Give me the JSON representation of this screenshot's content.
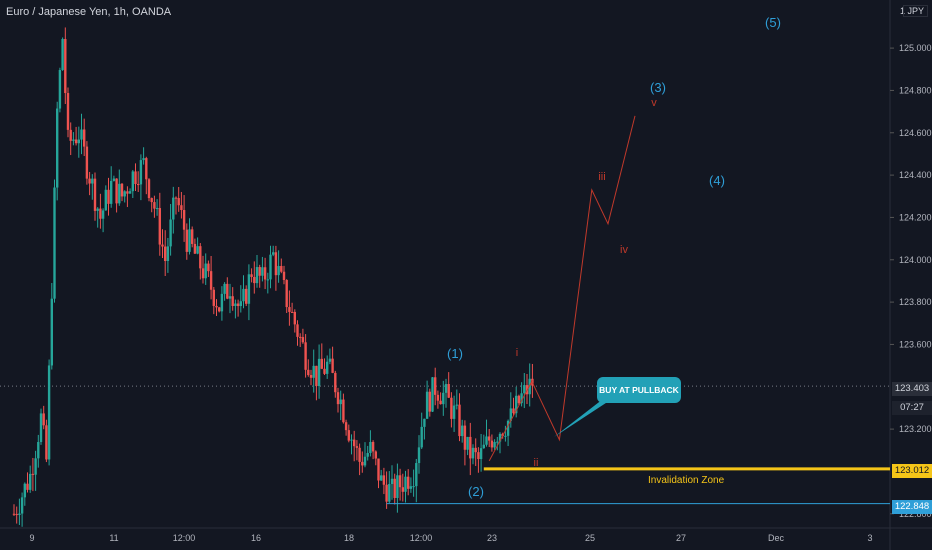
{
  "header": {
    "title": "Euro / Japanese Yen, 1h, OANDA",
    "currency": "JPY"
  },
  "colors": {
    "bg": "#131722",
    "up": "#26a69a",
    "down": "#ef5350",
    "wave": "#2f9fd8",
    "projection": "#c0392b",
    "invalidation": "#f5c518",
    "callout": "#22a1b7",
    "grid": "#1e2230"
  },
  "axis": {
    "y_ticks": [
      "125.000",
      "124.800",
      "124.600",
      "124.400",
      "124.200",
      "124.000",
      "123.800",
      "123.600",
      "123.200",
      "122.800"
    ],
    "x_ticks": [
      "9",
      "11",
      "12:00",
      "16",
      "18",
      "12:00",
      "23",
      "25",
      "27",
      "Dec",
      "3"
    ]
  },
  "price_tags": {
    "current": "123.403",
    "countdown": "07:27",
    "invalidation": "123.012",
    "low": "122.848",
    "top": "1"
  },
  "annotations": {
    "waves_major": [
      "(1)",
      "(2)",
      "(3)",
      "(4)",
      "(5)"
    ],
    "waves_minor": [
      "i",
      "ii",
      "iii",
      "iv",
      "v"
    ],
    "callout": "BUY AT PULLBACK",
    "invalidation_zone": "Invalidation Zone"
  },
  "chart_data": {
    "type": "candlestick",
    "title": "Euro / Japanese Yen, 1h, OANDA",
    "ylim": [
      122.78,
      125.18
    ],
    "price_path": [
      [
        0,
        122.8
      ],
      [
        3,
        122.98
      ],
      [
        5,
        123.25
      ],
      [
        6,
        123.05
      ],
      [
        8,
        124.7
      ],
      [
        9,
        125.05
      ],
      [
        10,
        124.55
      ],
      [
        12,
        124.6
      ],
      [
        14,
        124.4
      ],
      [
        16,
        124.2
      ],
      [
        18,
        124.35
      ],
      [
        20,
        124.3
      ],
      [
        22,
        124.4
      ],
      [
        24,
        124.45
      ],
      [
        26,
        124.25
      ],
      [
        28,
        124.0
      ],
      [
        30,
        124.3
      ],
      [
        32,
        124.1
      ],
      [
        34,
        124.0
      ],
      [
        36,
        123.9
      ],
      [
        38,
        123.78
      ],
      [
        40,
        123.88
      ],
      [
        42,
        123.75
      ],
      [
        44,
        123.95
      ],
      [
        46,
        123.9
      ],
      [
        48,
        124.02
      ],
      [
        50,
        123.85
      ],
      [
        52,
        123.7
      ],
      [
        54,
        123.55
      ],
      [
        56,
        123.45
      ],
      [
        58,
        123.5
      ],
      [
        60,
        123.38
      ],
      [
        62,
        123.2
      ],
      [
        64,
        123.05
      ],
      [
        66,
        123.1
      ],
      [
        68,
        122.95
      ],
      [
        70,
        122.9
      ],
      [
        72,
        122.95
      ],
      [
        74,
        123.0
      ],
      [
        76,
        123.3
      ],
      [
        78,
        123.4
      ],
      [
        80,
        123.35
      ],
      [
        82,
        123.25
      ],
      [
        84,
        123.1
      ],
      [
        86,
        123.05
      ],
      [
        88,
        123.15
      ],
      [
        90,
        123.2
      ],
      [
        92,
        123.25
      ],
      [
        94,
        123.35
      ],
      [
        96,
        123.42
      ]
    ],
    "projection": [
      [
        96,
        123.42
      ],
      [
        101,
        123.15
      ],
      [
        107,
        124.33
      ],
      [
        110,
        124.17
      ],
      [
        115,
        124.68
      ]
    ],
    "levels": {
      "current": 123.403,
      "invalidation": 123.012,
      "low": 122.848
    }
  }
}
